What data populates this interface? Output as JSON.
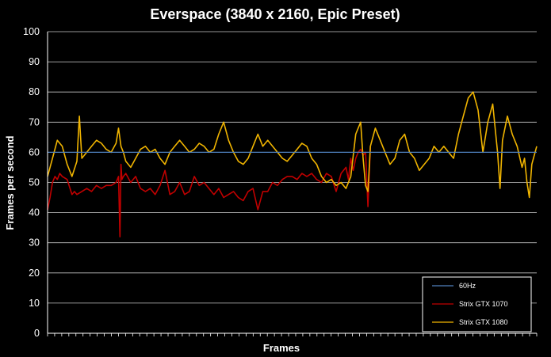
{
  "chart_data": {
    "type": "line",
    "title": "Everspace (3840 x 2160, Epic Preset)",
    "xlabel": "Frames",
    "ylabel": "Frames per second",
    "ylim": [
      0,
      100
    ],
    "yticks": [
      0,
      10,
      20,
      30,
      40,
      50,
      60,
      70,
      80,
      90,
      100
    ],
    "x_tick_count": 69,
    "grid": true,
    "legend_position": "bottom-right",
    "series": [
      {
        "name": "60Hz",
        "color": "#4f81bd",
        "x": [
          0,
          1
        ],
        "values": [
          60,
          60
        ]
      },
      {
        "name": "Strix GTX 1070",
        "color": "#c00000",
        "x": [
          0.0,
          0.005,
          0.01,
          0.015,
          0.02,
          0.025,
          0.03,
          0.04,
          0.05,
          0.055,
          0.06,
          0.07,
          0.08,
          0.09,
          0.1,
          0.11,
          0.12,
          0.13,
          0.14,
          0.145,
          0.148,
          0.15,
          0.152,
          0.155,
          0.16,
          0.17,
          0.18,
          0.19,
          0.2,
          0.21,
          0.22,
          0.23,
          0.24,
          0.25,
          0.26,
          0.27,
          0.28,
          0.29,
          0.3,
          0.31,
          0.32,
          0.33,
          0.34,
          0.35,
          0.36,
          0.37,
          0.38,
          0.39,
          0.4,
          0.41,
          0.42,
          0.43,
          0.44,
          0.45,
          0.46,
          0.47,
          0.48,
          0.49,
          0.5,
          0.51,
          0.52,
          0.53,
          0.54,
          0.55,
          0.56,
          0.57,
          0.58,
          0.59,
          0.6,
          0.61,
          0.615,
          0.62,
          0.625,
          0.63,
          0.635,
          0.64,
          0.645,
          0.65,
          0.655,
          0.66
        ],
        "values": [
          41,
          45,
          50,
          52,
          51,
          53,
          52,
          51,
          46,
          47,
          46,
          47,
          48,
          47,
          49,
          48,
          49,
          49,
          50,
          52,
          32,
          56,
          51,
          52,
          53,
          50,
          52,
          48,
          47,
          48,
          46,
          49,
          54,
          46,
          47,
          50,
          46,
          47,
          52,
          49,
          50,
          48,
          46,
          48,
          45,
          46,
          47,
          45,
          44,
          47,
          48,
          41,
          47,
          47,
          50,
          49,
          51,
          52,
          52,
          51,
          53,
          52,
          53,
          51,
          50,
          53,
          52,
          47,
          53,
          55,
          51,
          58,
          54,
          58,
          60,
          61,
          59,
          60,
          42,
          62
        ]
      },
      {
        "name": "Strix GTX 1080",
        "color": "#f0b400",
        "x": [
          0.0,
          0.01,
          0.02,
          0.03,
          0.04,
          0.05,
          0.06,
          0.065,
          0.07,
          0.08,
          0.09,
          0.1,
          0.11,
          0.12,
          0.13,
          0.14,
          0.145,
          0.15,
          0.155,
          0.16,
          0.17,
          0.18,
          0.19,
          0.2,
          0.21,
          0.22,
          0.23,
          0.24,
          0.25,
          0.26,
          0.27,
          0.28,
          0.29,
          0.3,
          0.31,
          0.32,
          0.33,
          0.34,
          0.35,
          0.36,
          0.37,
          0.38,
          0.39,
          0.4,
          0.41,
          0.42,
          0.43,
          0.44,
          0.45,
          0.46,
          0.47,
          0.48,
          0.49,
          0.5,
          0.51,
          0.52,
          0.53,
          0.54,
          0.55,
          0.56,
          0.57,
          0.58,
          0.59,
          0.6,
          0.61,
          0.62,
          0.63,
          0.64,
          0.645,
          0.65,
          0.655,
          0.66,
          0.67,
          0.68,
          0.69,
          0.7,
          0.71,
          0.72,
          0.73,
          0.74,
          0.75,
          0.76,
          0.77,
          0.78,
          0.79,
          0.8,
          0.81,
          0.82,
          0.83,
          0.84,
          0.85,
          0.86,
          0.87,
          0.88,
          0.89,
          0.9,
          0.91,
          0.92,
          0.925,
          0.93,
          0.94,
          0.95,
          0.96,
          0.97,
          0.975,
          0.98,
          0.985,
          0.99,
          1.0
        ],
        "values": [
          52,
          58,
          64,
          62,
          56,
          52,
          57,
          72,
          58,
          60,
          62,
          64,
          63,
          61,
          60,
          63,
          68,
          62,
          60,
          57,
          55,
          58,
          61,
          62,
          60,
          61,
          58,
          56,
          60,
          62,
          64,
          62,
          60,
          61,
          63,
          62,
          60,
          61,
          66,
          70,
          64,
          60,
          57,
          56,
          58,
          62,
          66,
          62,
          64,
          62,
          60,
          58,
          57,
          59,
          61,
          63,
          62,
          58,
          56,
          52,
          50,
          51,
          49,
          50,
          48,
          52,
          66,
          70,
          58,
          49,
          47,
          62,
          68,
          64,
          60,
          56,
          58,
          64,
          66,
          60,
          58,
          54,
          56,
          58,
          62,
          60,
          62,
          60,
          58,
          66,
          72,
          78,
          80,
          74,
          60,
          70,
          76,
          60,
          48,
          64,
          72,
          66,
          62,
          55,
          58,
          50,
          45,
          56,
          62
        ]
      }
    ]
  }
}
